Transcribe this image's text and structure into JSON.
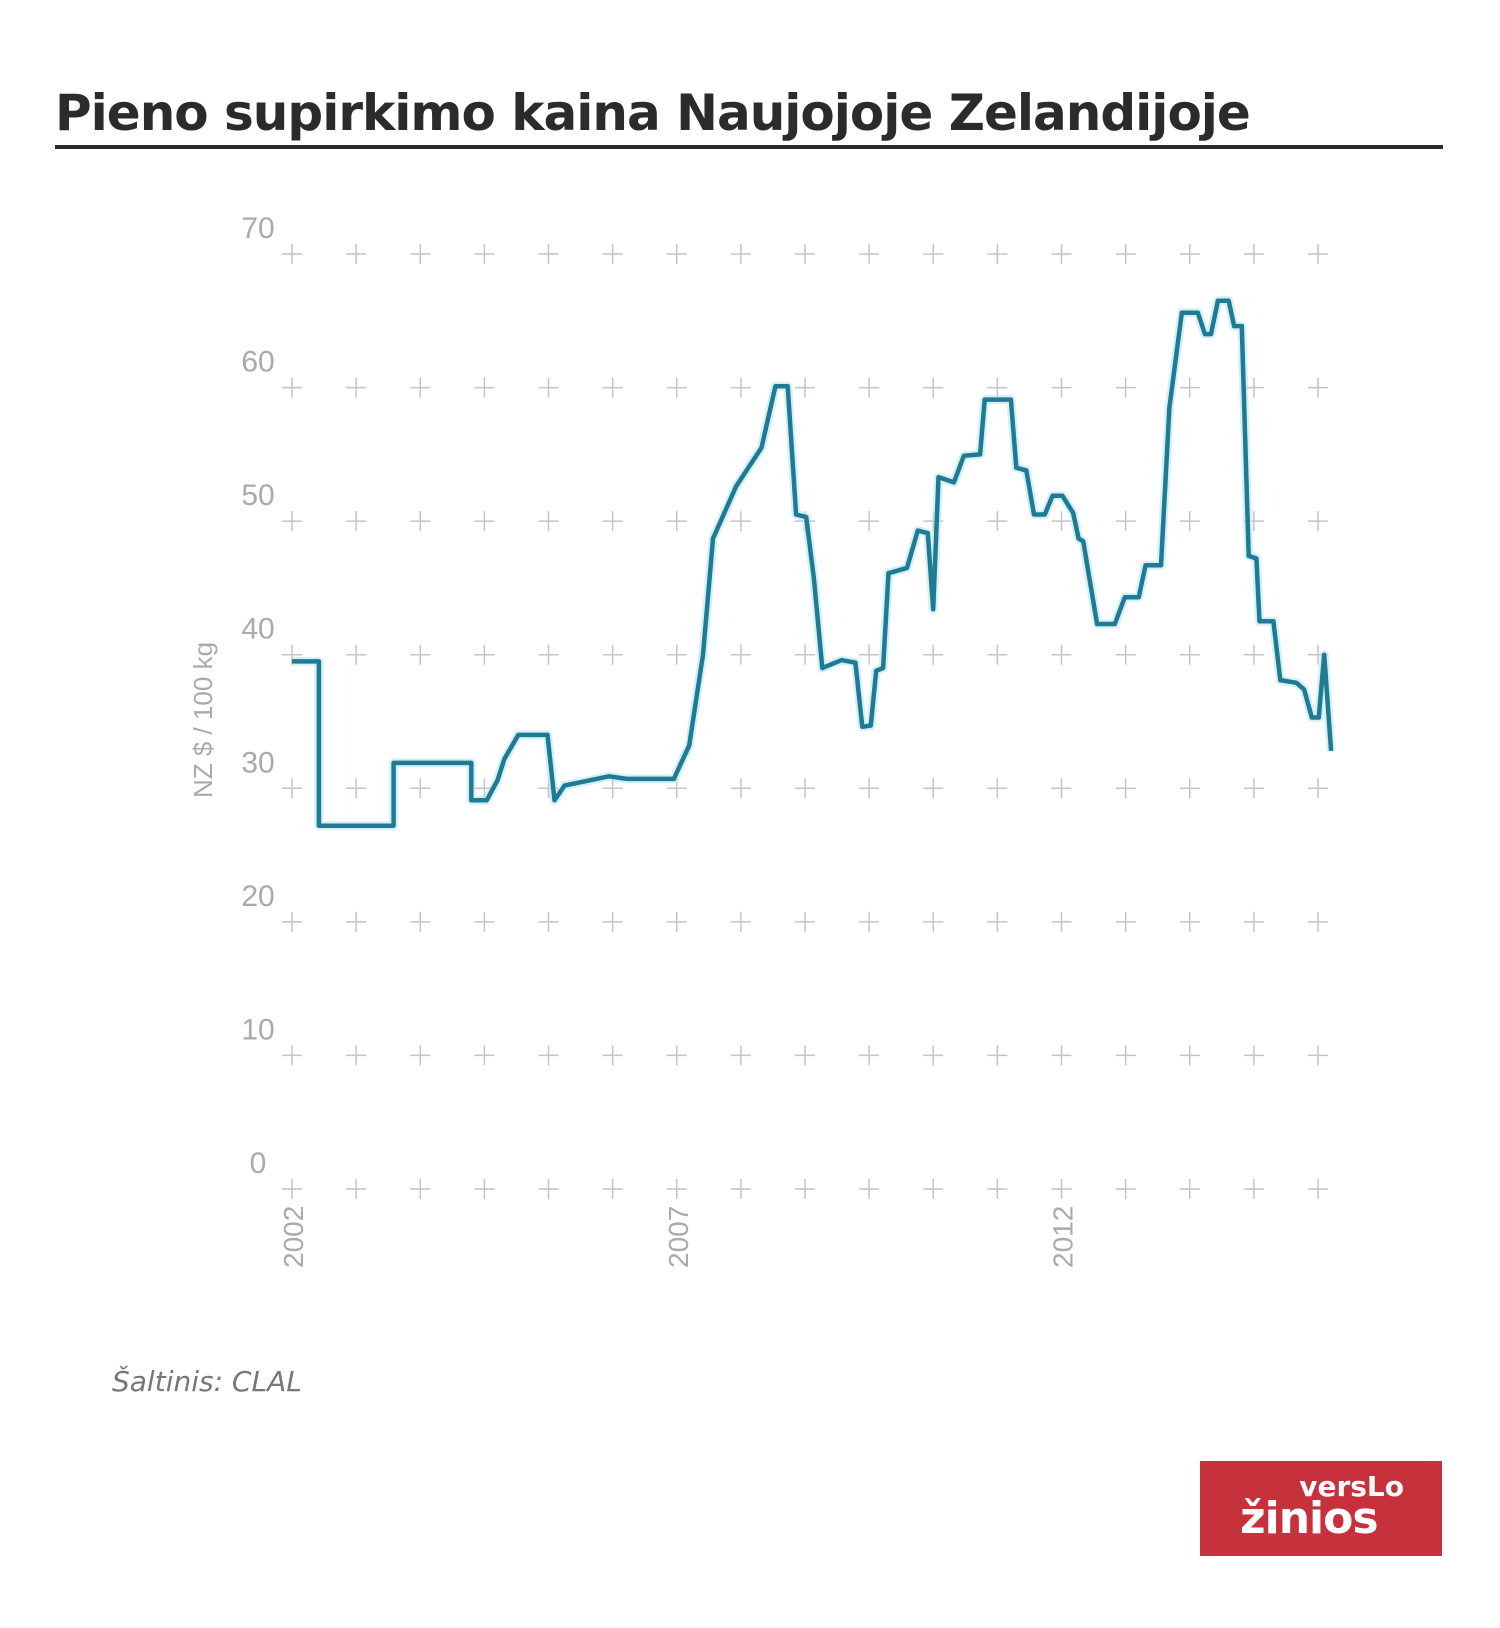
{
  "chart_data": {
    "type": "line",
    "title": "Pieno supirkimo kaina Naujojoje Zelandijoje",
    "ylabel": "NZ $ / 100 kg",
    "xlabel": "",
    "ylim": [
      0,
      70
    ],
    "yticks": [
      "0",
      "10",
      "20",
      "30",
      "40",
      "50",
      "60",
      "70"
    ],
    "xticks": [
      "2002",
      "2007",
      "2012"
    ],
    "xlim": [
      2002,
      2015.33
    ],
    "grid": true,
    "line_color": "#1f7a93",
    "x": [
      2002.0,
      2002.35,
      2002.35,
      2003.32,
      2003.32,
      2004.33,
      2004.33,
      2004.53,
      2004.67,
      2004.76,
      2004.94,
      2005.32,
      2005.41,
      2005.54,
      2006.12,
      2006.35,
      2006.96,
      2007.16,
      2007.34,
      2007.47,
      2007.77,
      2008.1,
      2008.28,
      2008.44,
      2008.55,
      2008.68,
      2008.78,
      2008.89,
      2009.14,
      2009.32,
      2009.41,
      2009.52,
      2009.59,
      2009.68,
      2009.75,
      2009.99,
      2010.13,
      2010.26,
      2010.33,
      2010.4,
      2010.6,
      2010.73,
      2010.94,
      2011.0,
      2011.34,
      2011.41,
      2011.54,
      2011.64,
      2011.78,
      2011.88,
      2012.01,
      2012.15,
      2012.22,
      2012.28,
      2012.46,
      2012.69,
      2012.82,
      2013.0,
      2013.09,
      2013.29,
      2013.4,
      2013.56,
      2013.77,
      2013.86,
      2013.94,
      2014.03,
      2014.17,
      2014.24,
      2014.34,
      2014.43,
      2014.53,
      2014.57,
      2014.75,
      2014.84,
      2015.05,
      2015.15,
      2015.25,
      2015.34,
      2015.41,
      2015.5
    ],
    "y": [
      39.5,
      39.5,
      27.2,
      27.2,
      31.9,
      31.9,
      29.1,
      29.1,
      30.6,
      32.2,
      34.0,
      34.0,
      29.1,
      30.2,
      30.9,
      30.7,
      30.7,
      33.2,
      40.0,
      48.7,
      52.6,
      55.5,
      60.1,
      60.1,
      50.5,
      50.3,
      45.7,
      39.0,
      39.6,
      39.4,
      34.6,
      34.7,
      38.8,
      39.0,
      46.1,
      46.5,
      49.3,
      49.1,
      43.4,
      53.3,
      52.9,
      54.9,
      55.0,
      59.1,
      59.1,
      54.0,
      53.8,
      50.5,
      50.5,
      51.9,
      51.9,
      50.6,
      48.7,
      48.5,
      42.3,
      42.3,
      44.3,
      44.3,
      46.7,
      46.7,
      58.5,
      65.6,
      65.6,
      64.0,
      64.0,
      66.5,
      66.5,
      64.6,
      64.6,
      47.4,
      47.2,
      42.5,
      42.5,
      38.1,
      37.9,
      37.4,
      35.3,
      35.3,
      40.0,
      32.8
    ]
  },
  "source": "Šaltinis: CLAL",
  "logo": {
    "line1": "versLo",
    "line2": "žinios",
    "color": "#c6313b"
  }
}
